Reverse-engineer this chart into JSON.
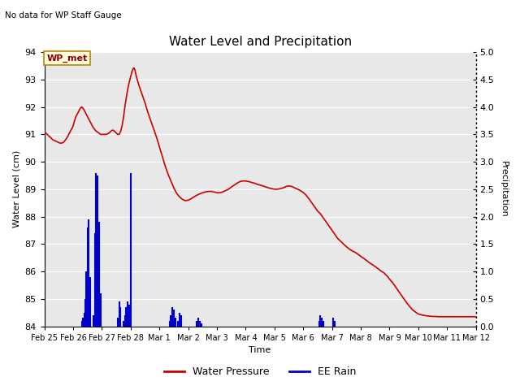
{
  "title": "Water Level and Precipitation",
  "subtitle": "No data for WP Staff Gauge",
  "xlabel": "Time",
  "ylabel_left": "Water Level (cm)",
  "ylabel_right": "Precipitation",
  "annotation": "WP_met",
  "ylim_left": [
    84.0,
    94.0
  ],
  "ylim_right": [
    0.0,
    5.0
  ],
  "yticks_left": [
    84.0,
    85.0,
    86.0,
    87.0,
    88.0,
    89.0,
    90.0,
    91.0,
    92.0,
    93.0,
    94.0
  ],
  "yticks_right": [
    0.0,
    0.5,
    1.0,
    1.5,
    2.0,
    2.5,
    3.0,
    3.5,
    4.0,
    4.5,
    5.0
  ],
  "bg_color": "#e8e8e8",
  "fig_color": "#ffffff",
  "water_pressure_color": "#cc0000",
  "rain_color": "#0000cc",
  "legend_items": [
    "Water Pressure",
    "EE Rain"
  ],
  "xtick_labels": [
    "Feb 25",
    "Feb 26",
    "Feb 27",
    "Feb 28",
    "Mar 1",
    "Mar 2",
    "Mar 3",
    "Mar 4",
    "Mar 5",
    "Mar 6",
    "Mar 7",
    "Mar 8",
    "Mar 9",
    "Mar 10",
    "Mar 11",
    "Mar 12"
  ],
  "rain_x": [
    1.3,
    1.35,
    1.4,
    1.42,
    1.45,
    1.5,
    1.55,
    1.6,
    1.7,
    1.75,
    1.8,
    1.85,
    1.9,
    1.95,
    2.55,
    2.6,
    2.65,
    2.75,
    2.8,
    2.85,
    2.9,
    2.95,
    3.0,
    4.35,
    4.4,
    4.45,
    4.5,
    4.55,
    4.65,
    4.7,
    4.75,
    5.3,
    5.35,
    5.4,
    5.45,
    9.55,
    9.6,
    9.65,
    9.7,
    10.05,
    10.1
  ],
  "rain_h": [
    0.1,
    0.15,
    0.25,
    0.5,
    1.0,
    1.8,
    1.95,
    0.9,
    0.2,
    1.7,
    2.8,
    2.75,
    1.9,
    0.6,
    0.15,
    0.45,
    0.35,
    0.1,
    0.2,
    0.35,
    0.45,
    0.4,
    2.8,
    0.1,
    0.2,
    0.35,
    0.3,
    0.15,
    0.1,
    0.25,
    0.2,
    0.1,
    0.15,
    0.1,
    0.05,
    0.1,
    0.2,
    0.15,
    0.1,
    0.15,
    0.1
  ],
  "wp_x": [
    0.0,
    0.05,
    0.1,
    0.15,
    0.2,
    0.25,
    0.3,
    0.35,
    0.4,
    0.45,
    0.5,
    0.55,
    0.6,
    0.65,
    0.7,
    0.75,
    0.8,
    0.85,
    0.9,
    0.95,
    1.0,
    1.05,
    1.1,
    1.15,
    1.2,
    1.25,
    1.3,
    1.35,
    1.4,
    1.45,
    1.5,
    1.55,
    1.6,
    1.65,
    1.7,
    1.75,
    1.8,
    1.85,
    1.9,
    1.95,
    2.0,
    2.05,
    2.1,
    2.15,
    2.2,
    2.25,
    2.3,
    2.35,
    2.4,
    2.45,
    2.5,
    2.55,
    2.6,
    2.65,
    2.7,
    2.75,
    2.8,
    2.85,
    2.9,
    2.95,
    3.0,
    3.05,
    3.1,
    3.12,
    3.15,
    3.2,
    3.3,
    3.4,
    3.5,
    3.6,
    3.7,
    3.8,
    3.9,
    4.0,
    4.1,
    4.2,
    4.3,
    4.4,
    4.5,
    4.6,
    4.7,
    4.8,
    4.9,
    5.0,
    5.1,
    5.2,
    5.3,
    5.4,
    5.5,
    5.6,
    5.7,
    5.8,
    5.9,
    6.0,
    6.1,
    6.2,
    6.3,
    6.4,
    6.5,
    6.6,
    6.7,
    6.8,
    6.9,
    7.0,
    7.1,
    7.2,
    7.3,
    7.4,
    7.5,
    7.6,
    7.7,
    7.8,
    7.9,
    8.0,
    8.1,
    8.2,
    8.3,
    8.4,
    8.5,
    8.6,
    8.7,
    8.8,
    8.9,
    9.0,
    9.1,
    9.2,
    9.3,
    9.4,
    9.5,
    9.6,
    9.7,
    9.8,
    9.9,
    10.0,
    10.1,
    10.2,
    10.3,
    10.4,
    10.5,
    10.6,
    10.7,
    10.8,
    10.9,
    11.0,
    11.1,
    11.2,
    11.3,
    11.4,
    11.5,
    11.6,
    11.7,
    11.8,
    11.9,
    12.0,
    12.1,
    12.2,
    12.3,
    12.4,
    12.5,
    12.6,
    12.7,
    12.8,
    12.9,
    13.0,
    13.1,
    13.2,
    13.3,
    13.4,
    13.5,
    13.6,
    13.7,
    13.8,
    13.9,
    14.0,
    14.1,
    14.2,
    14.3,
    14.4,
    14.5,
    14.6,
    14.7,
    14.8,
    14.9,
    15.0
  ],
  "wp_y": [
    91.1,
    91.05,
    91.0,
    90.95,
    90.9,
    90.85,
    90.8,
    90.78,
    90.75,
    90.73,
    90.7,
    90.68,
    90.68,
    90.7,
    90.75,
    90.82,
    90.9,
    91.0,
    91.1,
    91.2,
    91.3,
    91.5,
    91.65,
    91.75,
    91.85,
    91.95,
    92.0,
    91.95,
    91.85,
    91.75,
    91.65,
    91.55,
    91.45,
    91.35,
    91.25,
    91.18,
    91.12,
    91.08,
    91.05,
    91.0,
    91.0,
    91.0,
    91.0,
    91.0,
    91.02,
    91.05,
    91.1,
    91.15,
    91.15,
    91.1,
    91.05,
    91.0,
    91.0,
    91.1,
    91.3,
    91.6,
    92.0,
    92.35,
    92.65,
    92.9,
    93.1,
    93.3,
    93.42,
    93.42,
    93.35,
    93.1,
    92.75,
    92.45,
    92.15,
    91.8,
    91.5,
    91.2,
    90.9,
    90.55,
    90.2,
    89.85,
    89.55,
    89.3,
    89.05,
    88.85,
    88.72,
    88.63,
    88.58,
    88.6,
    88.65,
    88.72,
    88.78,
    88.83,
    88.87,
    88.9,
    88.92,
    88.92,
    88.9,
    88.87,
    88.87,
    88.9,
    88.95,
    89.0,
    89.08,
    89.15,
    89.22,
    89.28,
    89.3,
    89.3,
    89.28,
    89.25,
    89.22,
    89.18,
    89.15,
    89.12,
    89.08,
    89.05,
    89.02,
    89.0,
    89.0,
    89.02,
    89.05,
    89.1,
    89.12,
    89.1,
    89.05,
    89.0,
    88.95,
    88.88,
    88.78,
    88.65,
    88.5,
    88.35,
    88.2,
    88.1,
    87.95,
    87.8,
    87.65,
    87.5,
    87.35,
    87.2,
    87.1,
    87.0,
    86.9,
    86.82,
    86.75,
    86.7,
    86.63,
    86.55,
    86.48,
    86.4,
    86.32,
    86.25,
    86.18,
    86.1,
    86.02,
    85.95,
    85.85,
    85.72,
    85.6,
    85.45,
    85.3,
    85.15,
    85.0,
    84.85,
    84.72,
    84.6,
    84.52,
    84.45,
    84.42,
    84.4,
    84.38,
    84.37,
    84.36,
    84.36,
    84.35,
    84.35,
    84.35,
    84.35,
    84.35,
    84.35,
    84.35,
    84.35,
    84.35,
    84.35,
    84.35,
    84.35,
    84.35,
    84.35
  ]
}
